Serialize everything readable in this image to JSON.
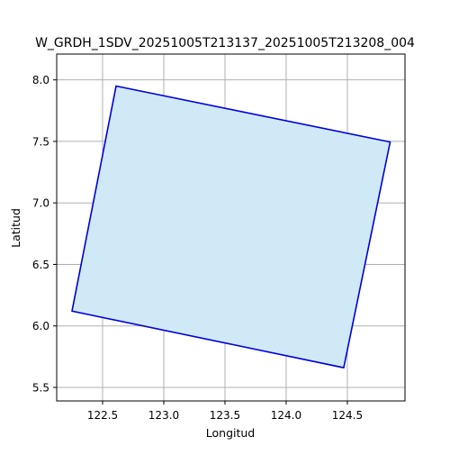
{
  "chart_data": {
    "type": "area",
    "title": "W_GRDH_1SDV_20251005T213137_20251005T213208_004",
    "xlabel": "Longitud",
    "ylabel": "Latitud",
    "xlim": [
      12.215,
      124.99
    ],
    "ylim": [
      5.39,
      8.21
    ],
    "xticks": [
      122.5,
      123.0,
      123.5,
      124.0,
      124.5
    ],
    "xtick_labels": [
      "122.5",
      "123.0",
      "123.5",
      "124.0",
      "124.5"
    ],
    "yticks": [
      5.5,
      6.0,
      6.5,
      7.0,
      7.5,
      8.0
    ],
    "ytick_labels": [
      "5.5",
      "6.0",
      "6.5",
      "7.0",
      "7.5",
      "8.0"
    ],
    "grid": true,
    "series": [
      {
        "kind": "polygon",
        "x": [
          122.61,
          124.85,
          124.47,
          122.25,
          122.61
        ],
        "y": [
          7.95,
          7.495,
          5.66,
          6.12,
          7.95
        ],
        "edge_color": "#0000dd",
        "fill_color": "#d0e9f7"
      }
    ]
  }
}
